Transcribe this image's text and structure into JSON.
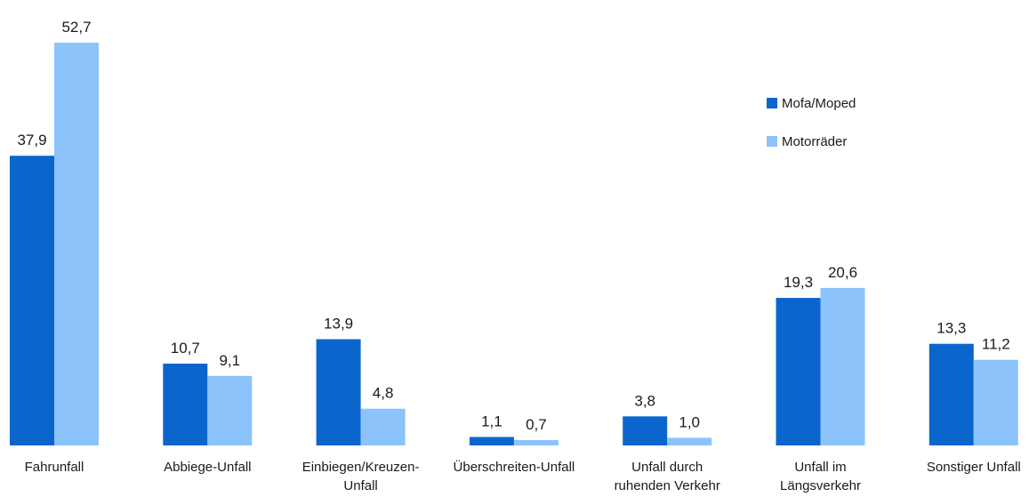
{
  "chart_data": {
    "type": "bar",
    "categories": [
      [
        "Fahrunfall"
      ],
      [
        "Abbiege-Unfall"
      ],
      [
        "Einbiegen/Kreuzen-",
        "Unfall"
      ],
      [
        "Überschreiten-Unfall"
      ],
      [
        "Unfall durch",
        "ruhenden Verkehr"
      ],
      [
        "Unfall im",
        "Längsverkehr"
      ],
      [
        "Sonstiger Unfall"
      ]
    ],
    "series": [
      {
        "name": "Mofa/Moped",
        "color": "#0a66cc",
        "values": [
          37.9,
          10.7,
          13.9,
          1.1,
          3.8,
          19.3,
          13.3
        ],
        "labels": [
          "37,9",
          "10,7",
          "13,9",
          "1,1",
          "3,8",
          "19,3",
          "13,3"
        ]
      },
      {
        "name": "Motorräder",
        "color": "#8cc3fb",
        "values": [
          52.7,
          9.1,
          4.8,
          0.7,
          1.0,
          20.6,
          11.2
        ],
        "labels": [
          "52,7",
          "9,1",
          "4,8",
          "0,7",
          "1,0",
          "20,6",
          "11,2"
        ]
      }
    ],
    "ylim": [
      0,
      52.7
    ],
    "grid": false,
    "legend_position": "right"
  }
}
